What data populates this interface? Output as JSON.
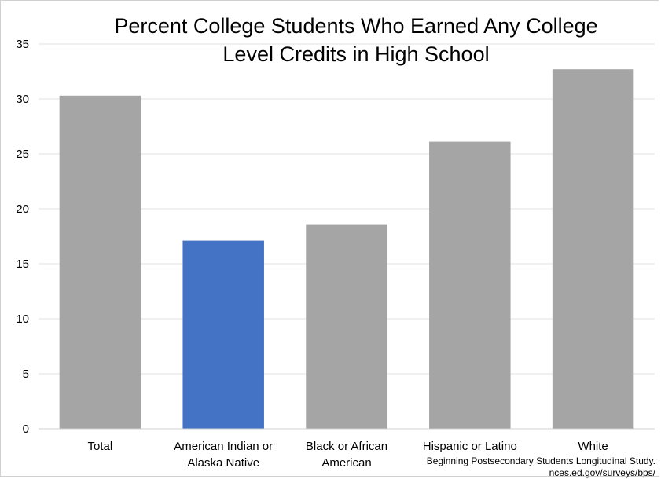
{
  "chart_data": {
    "type": "bar",
    "title_lines": [
      "Percent College Students Who Earned Any College",
      "Level Credits in High School"
    ],
    "xlabel": "",
    "ylabel": "",
    "categories": [
      [
        "Total"
      ],
      [
        "American Indian or",
        "Alaska Native"
      ],
      [
        "Black or African",
        "American"
      ],
      [
        "Hispanic or Latino"
      ],
      [
        "White"
      ]
    ],
    "values": [
      30.3,
      17.1,
      18.6,
      26.1,
      32.7
    ],
    "bar_colors": [
      "#a5a5a5",
      "#4472c4",
      "#a5a5a5",
      "#a5a5a5",
      "#a5a5a5"
    ],
    "ylim": [
      0,
      35
    ],
    "yticks": [
      0,
      5,
      10,
      15,
      20,
      25,
      30,
      35
    ],
    "grid": true,
    "source_lines": [
      "Beginning Postsecondary Students Longitudinal Study.",
      "nces.ed.gov/surveys/bps/"
    ]
  },
  "colors": {
    "gridline": "#e0e0e0",
    "axis": "#d0d0d0"
  }
}
